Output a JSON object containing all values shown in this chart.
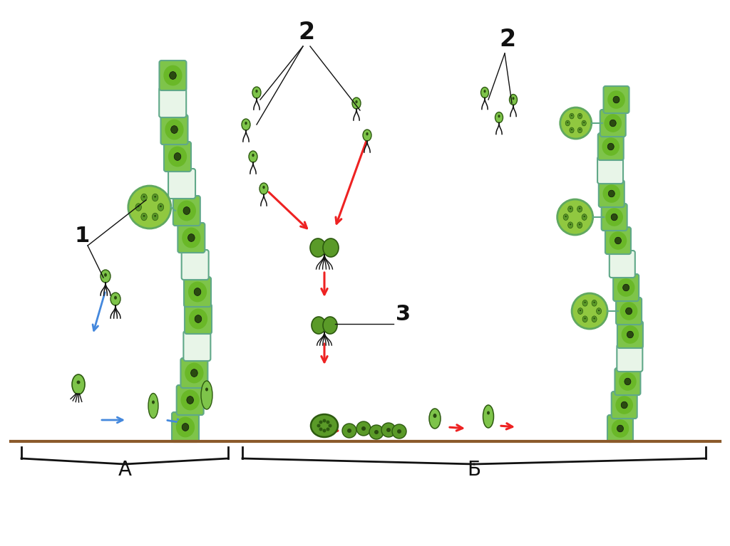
{
  "bg": "#ffffff",
  "lgreen": "#7ec44a",
  "mgreen": "#5a9a28",
  "dgreen": "#2d5a10",
  "lightgreen_fill": "#a8d060",
  "cell_border": "#60a888",
  "filament_border": "#80c8a8",
  "sporangium_fill": "#90c840",
  "sporangium_border": "#60a060",
  "blue": "#4488dd",
  "red": "#ee2222",
  "black": "#111111",
  "ground_brown": "#8b5a2b",
  "white_cell": "#e8f5e8",
  "nucleus_dark": "#2a4a10",
  "inner_chloroplast": "#6ab828",
  "label_A": "A",
  "label_B": "Б",
  "label_1": "1",
  "label_2": "2",
  "label_3": "3",
  "fontsize_label": 20,
  "fontsize_num": 22
}
